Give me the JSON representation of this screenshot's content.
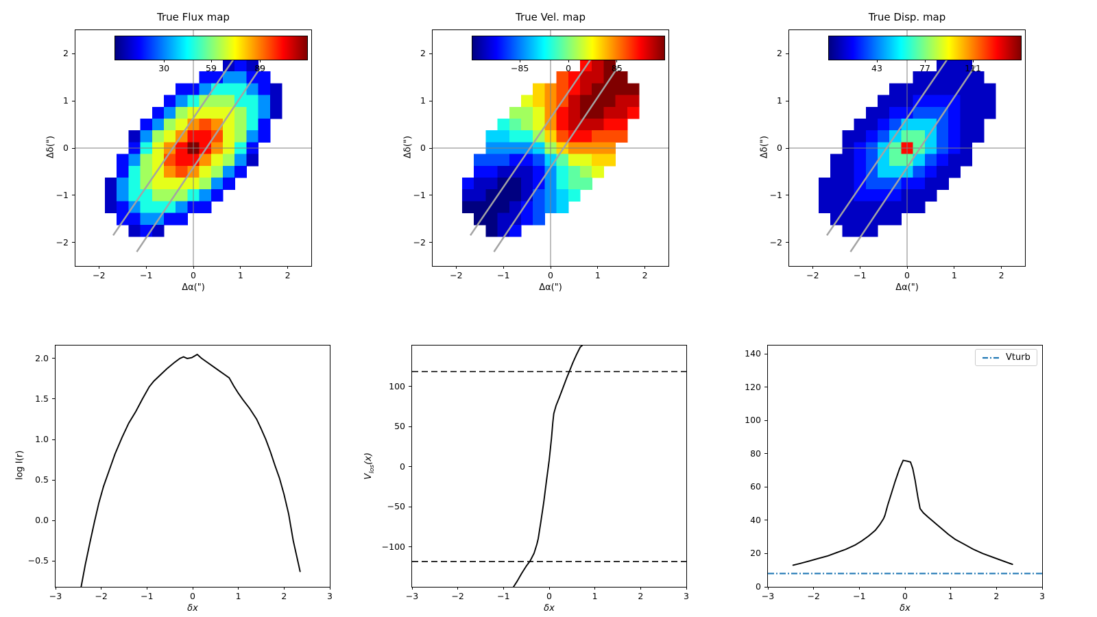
{
  "figure": {
    "background": "#ffffff"
  },
  "colors": {
    "curve": "#000000",
    "accent_blue": "#1f77b4",
    "crosshair": "#7f7f7f",
    "slit_line": "#a3a3a3",
    "spine": "#000000"
  },
  "chart_data": [
    {
      "type": "heatmap",
      "title": "True Flux map",
      "xlabel": "Δα(\")",
      "ylabel": "Δδ(\")",
      "xlim": [
        -2.5,
        2.5
      ],
      "ylim": [
        -2.5,
        2.5
      ],
      "xticks": {
        "values": [
          -2,
          -1,
          0,
          1,
          2
        ],
        "labels": [
          "−2",
          "−1",
          "0",
          "1",
          "2"
        ]
      },
      "yticks": {
        "values": [
          -2,
          -1,
          0,
          1,
          2
        ],
        "labels": [
          "−2",
          "−1",
          "0",
          "1",
          "2"
        ]
      },
      "colorbar": {
        "cmap": "jet",
        "vmin": 0,
        "vmax": 118,
        "ticks": [
          30,
          59,
          89
        ],
        "tick_labels": [
          "30",
          "59",
          "89"
        ]
      },
      "heatmap": {
        "note": "hex digit = level 0-15 mapped linearly to [vmin,vmax]; . = masked",
        "x0": -2.0,
        "y0": 2.0,
        "step": 0.25,
        "rows": [
          ".................",
          "...........121...",
          ".........224422..",
          ".......224666421.",
          "......2468886641.",
          ".....24899998641.",
          "....2489bcb9862..",
          "...1489bddc9842..",
          "...269bdfdb962...",
          "..2489cddb9841...",
          "..2689bcb9842....",
          ".14689999842.....",
          ".1466888642......",
          ".124666422.......",
          "..224422.........",
          "...121...........",
          "................."
        ]
      },
      "crosshair": {
        "x": 0,
        "y": 0
      },
      "slit_lines": [
        {
          "x1": -1.7,
          "y1": -1.85,
          "x2": 0.85,
          "y2": 1.88
        },
        {
          "x1": -1.2,
          "y1": -2.2,
          "x2": 1.45,
          "y2": 1.75
        }
      ]
    },
    {
      "type": "heatmap",
      "title": "True Vel. map",
      "xlabel": "Δα(\")",
      "ylabel": "Δδ(\")",
      "xlim": [
        -2.5,
        2.5
      ],
      "ylim": [
        -2.5,
        2.5
      ],
      "xticks": {
        "values": [
          -2,
          -1,
          0,
          1,
          2
        ],
        "labels": [
          "−2",
          "−1",
          "0",
          "1",
          "2"
        ]
      },
      "yticks": {
        "values": [
          -2,
          -1,
          0,
          1,
          2
        ],
        "labels": [
          "−2",
          "−1",
          "0",
          "1",
          "2"
        ]
      },
      "colorbar": {
        "cmap": "jet",
        "vmin": -168,
        "vmax": 168,
        "ticks": [
          -85,
          0,
          85
        ],
        "tick_labels": [
          "−85",
          "0",
          "85"
        ]
      },
      "heatmap": {
        "note": "hex digit = level 0-15 mapped linearly to [vmin,vmax]; . = masked",
        "x0": -2.0,
        "y0": 2.0,
        "step": 0.25,
        "rows": [
          ".................",
          "...........def...",
          ".........cdeeff..",
          ".......abcdeffff.",
          "......9abcefffee.",
          ".....889bdeffeed.",
          "....6789bdeeedd..",
          "...55668acddccc..",
          "...444458abbbb...",
          "..3332235799aa...",
          "..22111246789....",
          ".21100124677.....",
          ".1100013456......",
          ".000012345.......",
          "..001123.........",
          "...012...........",
          "................."
        ]
      },
      "crosshair": {
        "x": 0,
        "y": 0
      },
      "slit_lines": [
        {
          "x1": -1.7,
          "y1": -1.85,
          "x2": 0.85,
          "y2": 1.88
        },
        {
          "x1": -1.2,
          "y1": -2.2,
          "x2": 1.45,
          "y2": 1.75
        }
      ]
    },
    {
      "type": "heatmap",
      "title": "True Disp. map",
      "xlabel": "Δα(\")",
      "ylabel": "Δδ(\")",
      "xlim": [
        -2.5,
        2.5
      ],
      "ylim": [
        -2.5,
        2.5
      ],
      "xticks": {
        "values": [
          -2,
          -1,
          0,
          1,
          2
        ],
        "labels": [
          "−2",
          "−1",
          "0",
          "1",
          "2"
        ]
      },
      "yticks": {
        "values": [
          -2,
          -1,
          0,
          1,
          2
        ],
        "labels": [
          "−2",
          "−1",
          "0",
          "1",
          "2"
        ]
      },
      "colorbar": {
        "cmap": "jet",
        "vmin": 9,
        "vmax": 145,
        "ticks": [
          43,
          77,
          111
        ],
        "tick_labels": [
          "43",
          "77",
          "111"
        ]
      },
      "heatmap": {
        "note": "hex digit = level 0-15 mapped linearly to [vmin,vmax]; . = masked",
        "x0": -2.0,
        "y0": 2.0,
        "step": 0.25,
        "rows": [
          ".................",
          "...........111...",
          ".........111111..",
          ".......111111111.",
          "......1112222111.",
          ".....11223332111.",
          "....11235553211..",
          "...112357753211..",
          "...12357d75321...",
          "..112357753211...",
          "..11235553211....",
          ".11123332211.....",
          ".1112222111......",
          ".111111111.......",
          "..111111.........",
          "...111...........",
          "................."
        ]
      },
      "crosshair": {
        "x": 0,
        "y": 0
      },
      "slit_lines": [
        {
          "x1": -1.7,
          "y1": -1.85,
          "x2": 0.85,
          "y2": 1.88
        },
        {
          "x1": -1.2,
          "y1": -2.2,
          "x2": 1.45,
          "y2": 1.75
        }
      ]
    },
    {
      "type": "line",
      "xlabel": "δx",
      "ylabel": "log I(r)",
      "xlim": [
        -3,
        3
      ],
      "ylim": [
        -0.82,
        2.16
      ],
      "xticks": {
        "values": [
          -3,
          -2,
          -1,
          0,
          1,
          2,
          3
        ],
        "labels": [
          "−3",
          "−2",
          "−1",
          "0",
          "1",
          "2",
          "3"
        ]
      },
      "yticks": {
        "values": [
          -0.5,
          0,
          0.5,
          1,
          1.5,
          2
        ],
        "labels": [
          "−0.5",
          "0.0",
          "0.5",
          "1.0",
          "1.5",
          "2.0"
        ]
      },
      "series": [
        {
          "name": "log-intensity-profile",
          "color": "#000000",
          "style": "solid",
          "points": [
            [
              -2.45,
              -0.85
            ],
            [
              -2.35,
              -0.55
            ],
            [
              -2.25,
              -0.28
            ],
            [
              -2.15,
              -0.02
            ],
            [
              -2.05,
              0.22
            ],
            [
              -1.95,
              0.42
            ],
            [
              -1.85,
              0.58
            ],
            [
              -1.7,
              0.82
            ],
            [
              -1.55,
              1.02
            ],
            [
              -1.4,
              1.2
            ],
            [
              -1.25,
              1.34
            ],
            [
              -1.1,
              1.5
            ],
            [
              -0.95,
              1.65
            ],
            [
              -0.85,
              1.72
            ],
            [
              -0.7,
              1.8
            ],
            [
              -0.55,
              1.88
            ],
            [
              -0.4,
              1.95
            ],
            [
              -0.28,
              2.0
            ],
            [
              -0.2,
              2.02
            ],
            [
              -0.12,
              2.0
            ],
            [
              -0.02,
              2.01
            ],
            [
              0.1,
              2.05
            ],
            [
              0.2,
              2.0
            ],
            [
              0.3,
              1.96
            ],
            [
              0.45,
              1.9
            ],
            [
              0.6,
              1.84
            ],
            [
              0.7,
              1.8
            ],
            [
              0.8,
              1.76
            ],
            [
              0.9,
              1.66
            ],
            [
              1.0,
              1.57
            ],
            [
              1.1,
              1.49
            ],
            [
              1.25,
              1.38
            ],
            [
              1.4,
              1.25
            ],
            [
              1.5,
              1.13
            ],
            [
              1.6,
              1.0
            ],
            [
              1.7,
              0.85
            ],
            [
              1.8,
              0.68
            ],
            [
              1.9,
              0.52
            ],
            [
              2.0,
              0.32
            ],
            [
              2.1,
              0.08
            ],
            [
              2.2,
              -0.25
            ],
            [
              2.3,
              -0.5
            ],
            [
              2.35,
              -0.63
            ]
          ]
        }
      ]
    },
    {
      "type": "line",
      "xlabel": "δx",
      "ylabel_main": "V",
      "ylabel_sub": "los",
      "ylabel_after": "(x)",
      "xlim": [
        -3,
        3
      ],
      "ylim": [
        -150,
        151
      ],
      "xticks": {
        "values": [
          -3,
          -2,
          -1,
          0,
          1,
          2,
          3
        ],
        "labels": [
          "−3",
          "−2",
          "−1",
          "0",
          "1",
          "2",
          "3"
        ]
      },
      "yticks": {
        "values": [
          -100,
          -50,
          0,
          50,
          100
        ],
        "labels": [
          "−100",
          "−50",
          "0",
          "50",
          "100"
        ]
      },
      "hlines": [
        {
          "name": "upper-velocity-limit",
          "y": 118.5,
          "style": "dashed",
          "color": "#000000"
        },
        {
          "name": "lower-velocity-limit",
          "y": -118.5,
          "style": "dashed",
          "color": "#000000"
        }
      ],
      "series": [
        {
          "name": "vlos-curve",
          "color": "#000000",
          "style": "solid",
          "points": [
            [
              -0.78,
              -150
            ],
            [
              -0.7,
              -143
            ],
            [
              -0.6,
              -133
            ],
            [
              -0.5,
              -124
            ],
            [
              -0.42,
              -118
            ],
            [
              -0.33,
              -108
            ],
            [
              -0.27,
              -97
            ],
            [
              -0.24,
              -90
            ],
            [
              -0.18,
              -68
            ],
            [
              -0.12,
              -45
            ],
            [
              -0.06,
              -18
            ],
            [
              0,
              8
            ],
            [
              0.05,
              35
            ],
            [
              0.08,
              55
            ],
            [
              0.1,
              66
            ],
            [
              0.15,
              76
            ],
            [
              0.22,
              86
            ],
            [
              0.3,
              98
            ],
            [
              0.38,
              110
            ],
            [
              0.45,
              120
            ],
            [
              0.52,
              130
            ],
            [
              0.6,
              140
            ],
            [
              0.68,
              149
            ],
            [
              0.72,
              151
            ]
          ]
        }
      ]
    },
    {
      "type": "line",
      "xlabel": "δx",
      "xlim": [
        -3,
        3
      ],
      "ylim": [
        0,
        145
      ],
      "xticks": {
        "values": [
          -3,
          -2,
          -1,
          0,
          1,
          2,
          3
        ],
        "labels": [
          "−3",
          "−2",
          "−1",
          "0",
          "1",
          "2",
          "3"
        ]
      },
      "yticks": {
        "values": [
          0,
          20,
          40,
          60,
          80,
          100,
          120,
          140
        ],
        "labels": [
          "0",
          "20",
          "40",
          "60",
          "80",
          "100",
          "120",
          "140"
        ]
      },
      "hlines": [
        {
          "name": "vturb-line",
          "y": 8,
          "style": "dashdot",
          "color": "#1f77b4"
        }
      ],
      "legend": {
        "label": "Vturb"
      },
      "series": [
        {
          "name": "dispersion-profile",
          "color": "#000000",
          "style": "solid",
          "points": [
            [
              -2.45,
              13
            ],
            [
              -2.3,
              14
            ],
            [
              -2.1,
              15.5
            ],
            [
              -1.9,
              17
            ],
            [
              -1.7,
              18.5
            ],
            [
              -1.5,
              20.5
            ],
            [
              -1.3,
              22.5
            ],
            [
              -1.1,
              25
            ],
            [
              -0.95,
              27.5
            ],
            [
              -0.8,
              30.5
            ],
            [
              -0.65,
              34
            ],
            [
              -0.55,
              37.5
            ],
            [
              -0.47,
              41
            ],
            [
              -0.44,
              43
            ],
            [
              -0.38,
              49
            ],
            [
              -0.3,
              56
            ],
            [
              -0.22,
              63
            ],
            [
              -0.12,
              71
            ],
            [
              -0.04,
              76
            ],
            [
              0.05,
              75.5
            ],
            [
              0.12,
              75
            ],
            [
              0.17,
              71
            ],
            [
              0.22,
              64
            ],
            [
              0.28,
              54
            ],
            [
              0.33,
              47
            ],
            [
              0.4,
              44.5
            ],
            [
              0.5,
              42
            ],
            [
              0.65,
              38.5
            ],
            [
              0.8,
              35
            ],
            [
              0.95,
              31.5
            ],
            [
              1.1,
              28.5
            ],
            [
              1.3,
              25.5
            ],
            [
              1.5,
              22.5
            ],
            [
              1.7,
              20
            ],
            [
              1.9,
              18
            ],
            [
              2.1,
              16
            ],
            [
              2.25,
              14.5
            ],
            [
              2.35,
              13.5
            ]
          ]
        }
      ]
    }
  ]
}
